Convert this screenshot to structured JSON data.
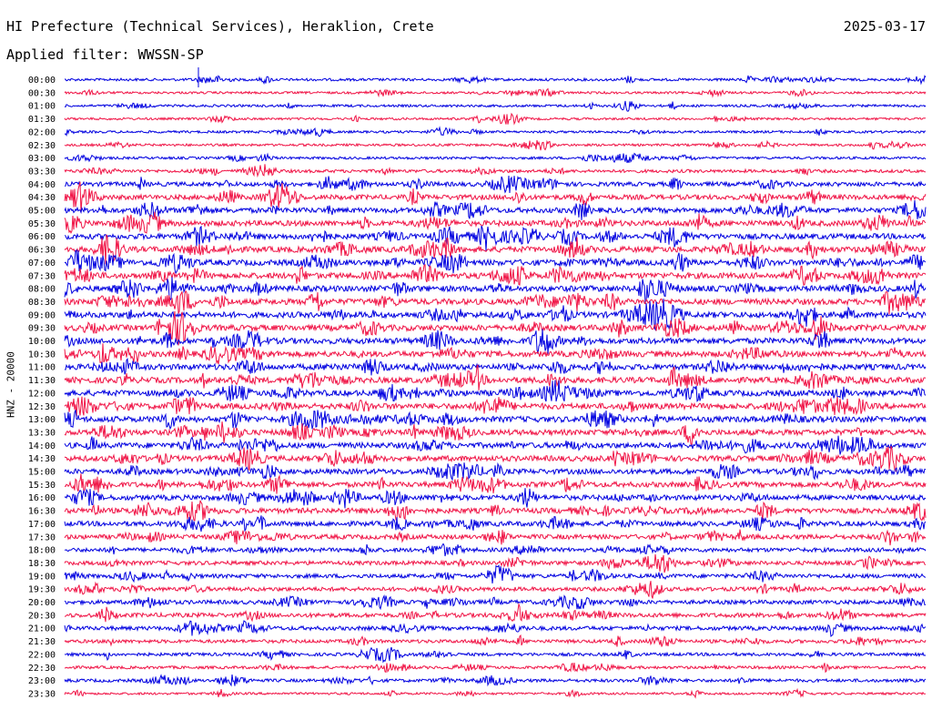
{
  "header": {
    "station": "HI Prefecture (Technical Services), Heraklion, Crete",
    "date": "2025-03-17",
    "filter": "Applied filter: WWSSN-SP"
  },
  "side_label": "HNZ - 20000",
  "colors": {
    "odd_rows": "#0000e0",
    "even_rows": "#f01446"
  },
  "chart_data": {
    "type": "line",
    "title": "HI Prefecture (Technical Services), Heraklion, Crete",
    "channel": "HNZ - 20000",
    "rows": [
      "00:00",
      "00:30",
      "01:00",
      "01:30",
      "02:00",
      "02:30",
      "03:00",
      "03:30",
      "04:00",
      "04:30",
      "05:00",
      "05:30",
      "06:00",
      "06:30",
      "07:00",
      "07:30",
      "08:00",
      "08:30",
      "09:00",
      "09:30",
      "10:00",
      "10:30",
      "11:00",
      "11:30",
      "12:00",
      "12:30",
      "13:00",
      "13:30",
      "14:00",
      "14:30",
      "15:00",
      "15:30",
      "16:00",
      "16:30",
      "17:00",
      "17:30",
      "18:00",
      "18:30",
      "19:00",
      "19:30",
      "20:00",
      "20:30",
      "21:00",
      "21:30",
      "22:00",
      "22:30",
      "23:00",
      "23:30"
    ],
    "activity_level": [
      0.25,
      0.2,
      0.22,
      0.2,
      0.22,
      0.22,
      0.24,
      0.35,
      0.55,
      0.65,
      0.7,
      0.75,
      0.75,
      0.8,
      0.8,
      0.8,
      0.8,
      0.8,
      0.8,
      0.8,
      0.8,
      0.8,
      0.8,
      0.8,
      0.8,
      0.8,
      0.8,
      0.75,
      0.75,
      0.75,
      0.7,
      0.7,
      0.7,
      0.7,
      0.65,
      0.6,
      0.5,
      0.5,
      0.5,
      0.5,
      0.5,
      0.55,
      0.5,
      0.4,
      0.35,
      0.3,
      0.35,
      0.2
    ],
    "grid": false
  }
}
